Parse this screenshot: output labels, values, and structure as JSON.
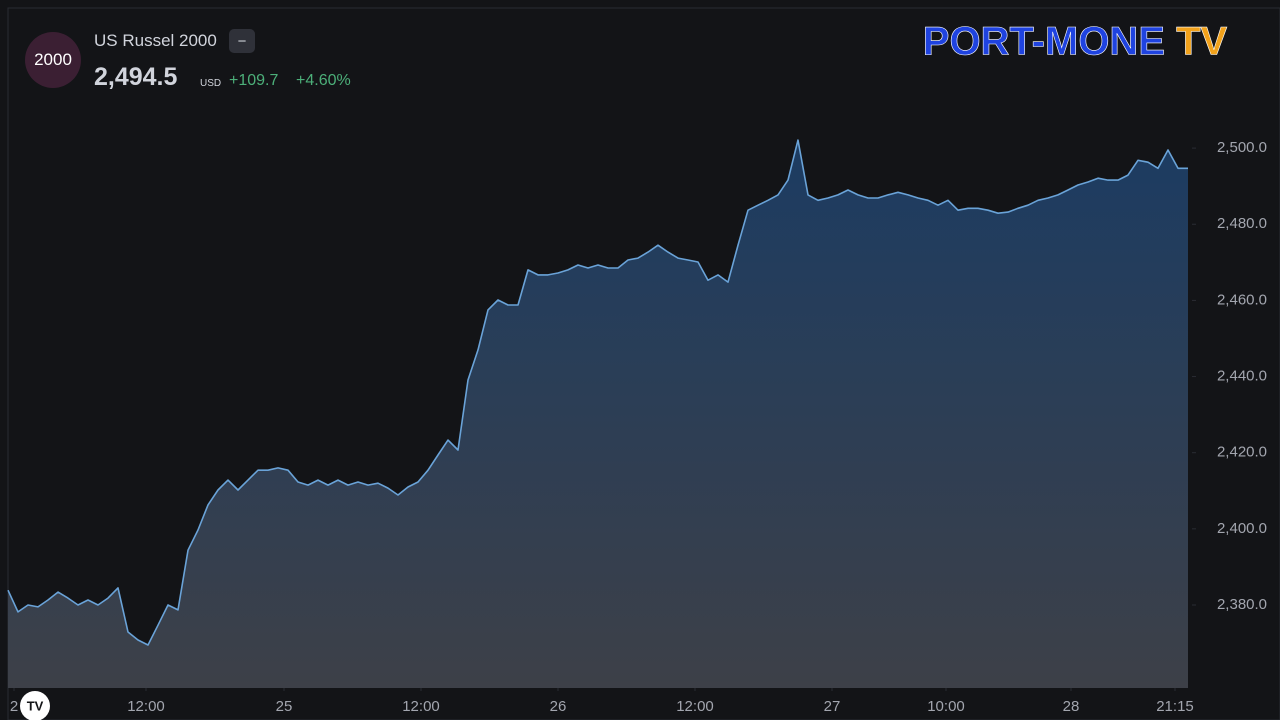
{
  "chart_data": {
    "type": "area",
    "title": "US Russel 2000",
    "icon_label": "2000",
    "menu_label": "−",
    "last_price": "2,494.5",
    "currency": "USD",
    "change": "+109.7",
    "change_pct": "+4.60%",
    "logo": "PORT-MONE TV",
    "series": [
      {
        "color": "#6aa3d8",
        "values": [
          2383.9,
          2378.2,
          2380.0,
          2379.5,
          2381.3,
          2383.4,
          2381.8,
          2380.0,
          2381.3,
          2380.0,
          2381.8,
          2384.5,
          2372.9,
          2370.8,
          2369.5,
          2374.7,
          2380.0,
          2378.7,
          2394.4,
          2399.7,
          2406.3,
          2410.2,
          2412.8,
          2410.2,
          2412.8,
          2415.4,
          2415.4,
          2416.0,
          2415.4,
          2412.3,
          2411.5,
          2412.8,
          2411.5,
          2412.8,
          2411.5,
          2412.3,
          2411.5,
          2412.0,
          2410.7,
          2408.9,
          2411.0,
          2412.3,
          2415.4,
          2419.4,
          2423.3,
          2420.7,
          2439.1,
          2447.0,
          2457.5,
          2460.1,
          2458.8,
          2458.8,
          2468.0,
          2466.7,
          2466.7,
          2467.2,
          2468.0,
          2469.3,
          2468.5,
          2469.3,
          2468.5,
          2468.5,
          2470.6,
          2471.1,
          2472.7,
          2474.5,
          2472.7,
          2471.1,
          2470.6,
          2470.1,
          2465.3,
          2466.7,
          2464.8,
          2474.5,
          2483.7,
          2485.0,
          2486.3,
          2487.7,
          2491.6,
          2502.1,
          2487.7,
          2486.3,
          2486.9,
          2487.7,
          2489.0,
          2487.7,
          2486.9,
          2486.9,
          2487.7,
          2488.4,
          2487.7,
          2486.9,
          2486.3,
          2485.0,
          2486.3,
          2483.7,
          2484.2,
          2484.2,
          2483.7,
          2482.9,
          2483.2,
          2484.2,
          2485.0,
          2486.3,
          2486.9,
          2487.7,
          2489.0,
          2490.3,
          2491.1,
          2492.1,
          2491.6,
          2491.6,
          2492.9,
          2496.8,
          2496.3,
          2494.7,
          2499.5,
          2494.7,
          2494.7
        ]
      }
    ],
    "xlim": [
      0,
      118.4
    ],
    "xticks": [
      {
        "value": 0.6,
        "label": "2"
      },
      {
        "value": 13.8,
        "label": "12:00"
      },
      {
        "value": 27.6,
        "label": "25"
      },
      {
        "value": 41.3,
        "label": "12:00"
      },
      {
        "value": 55,
        "label": "26"
      },
      {
        "value": 68.7,
        "label": "12:00"
      },
      {
        "value": 82.4,
        "label": "27"
      },
      {
        "value": 93.8,
        "label": "10:00"
      },
      {
        "value": 106.3,
        "label": "28"
      },
      {
        "value": 116.7,
        "label": "21:15"
      }
    ],
    "ylim": [
      2358.2,
      2536.8
    ],
    "yticks": [
      {
        "value": 2380,
        "label": "2,380.0"
      },
      {
        "value": 2400,
        "label": "2,400.0"
      },
      {
        "value": 2420,
        "label": "2,420.0"
      },
      {
        "value": 2440,
        "label": "2,440.0"
      },
      {
        "value": 2460,
        "label": "2,460.0"
      },
      {
        "value": 2480,
        "label": "2,480.0"
      },
      {
        "value": 2500,
        "label": "2,500.0"
      }
    ],
    "grid": false
  }
}
